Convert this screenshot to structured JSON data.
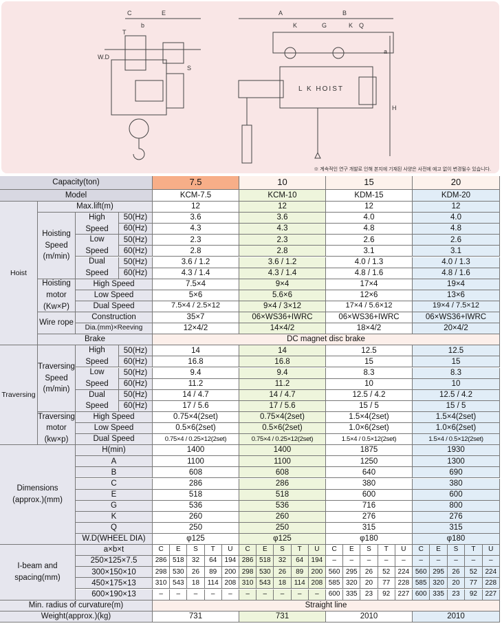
{
  "header": {
    "drawing_labels": [
      "C",
      "E",
      "T",
      "b",
      "W.D",
      "S",
      "A",
      "B",
      "K",
      "G",
      "K",
      "Q",
      "a",
      "H",
      "L K  HOIST"
    ],
    "note": "※ 계속적인 연구 개발로 인해 본지에 기재된 사양은 사전에 예고 없이 변경될수 있습니다."
  },
  "table": {
    "label_cells": [
      "Capacity(ton)",
      "Model",
      "Hoist",
      "Max.lift(m)",
      "Hoisting\nSpeed\n(m/min)",
      "High\nSpeed",
      "50(Hz)",
      "60(Hz)",
      "Low\nSpeed",
      "50(Hz)",
      "60(Hz)",
      "Dual\nSpeed",
      "50(Hz)",
      "60(Hz)",
      "Hoisting\nmotor\n(Kw×P)",
      "High Speed",
      "Low Speed",
      "Dual Speed",
      "Wire rope",
      "Construction",
      "Dia.(mm)×Reeving",
      "Brake",
      "Traversing",
      "Traversing\nSpeed\n(m/min)",
      "High\nSpeed",
      "50(Hz)",
      "60(Hz)",
      "Low\nSpeed",
      "50(Hz)",
      "60(Hz)",
      "Dual\nSpeed",
      "50(Hz)",
      "60(Hz)",
      "Traversing\nmotor\n(kw×p)",
      "High Speed",
      "Low Speed",
      "Dual Speed",
      "Dimensions\n(approx.)(mm)",
      "H(min)",
      "A",
      "B",
      "C",
      "E",
      "G",
      "K",
      "Q",
      "W.D(WHEEL DIA)",
      "I-beam and\nspacing(mm)",
      "a×b×t",
      "250×125×7.5",
      "300×150×10",
      "450×175×13",
      "600×190×13",
      "Min. radius of curvature(m)",
      "Weight(approx.)(kg)"
    ],
    "value_rows": [
      [
        "7.5",
        "10",
        "15",
        "20"
      ],
      [
        "KCM-7.5",
        "KCM-10",
        "KDM-15",
        "KDM-20"
      ],
      [
        "12",
        "12",
        "12",
        "12"
      ],
      [
        "3.6",
        "3.6",
        "4.0",
        "4.0"
      ],
      [
        "4.3",
        "4.3",
        "4.8",
        "4.8"
      ],
      [
        "2.3",
        "2.3",
        "2.6",
        "2.6"
      ],
      [
        "2.8",
        "2.8",
        "3.1",
        "3.1"
      ],
      [
        "3.6 / 1.2",
        "3.6 / 1.2",
        "4.0 / 1.3",
        "4.0 / 1.3"
      ],
      [
        "4.3 / 1.4",
        "4.3 / 1.4",
        "4.8 / 1.6",
        "4.8 / 1.6"
      ],
      [
        "7.5×4",
        "9×4",
        "17×4",
        "19×4"
      ],
      [
        "5×6",
        "5.6×6",
        "12×6",
        "13×6"
      ],
      [
        "7.5×4 / 2.5×12",
        "9×4 / 3×12",
        "17×4 / 5.6×12",
        "19×4 / 7.5×12"
      ],
      [
        "35×7",
        "06×WS36+IWRC",
        "06×WS36+IWRC",
        "06×WS36+IWRC"
      ],
      [
        "12×4/2",
        "14×4/2",
        "18×4/2",
        "20×4/2"
      ],
      [
        "DC magnet disc brake"
      ],
      [
        "14",
        "14",
        "12.5",
        "12.5"
      ],
      [
        "16.8",
        "16.8",
        "15",
        "15"
      ],
      [
        "9.4",
        "9.4",
        "8.3",
        "8.3"
      ],
      [
        "11.2",
        "11.2",
        "10",
        "10"
      ],
      [
        "14 / 4.7",
        "14 / 4.7",
        "12.5 / 4.2",
        "12.5 / 4.2"
      ],
      [
        "17 / 5.6",
        "17 / 5.6",
        "15 / 5",
        "15 / 5"
      ],
      [
        "0.75×4(2set)",
        "0.75×4(2set)",
        "1.5×4(2set)",
        "1.5×4(2set)"
      ],
      [
        "0.5×6(2set)",
        "0.5×6(2set)",
        "1.0×6(2set)",
        "1.0×6(2set)"
      ],
      [
        "0.75×4 / 0.25×12(2set)",
        "0.75×4 / 0.25×12(2set)",
        "1.5×4 / 0.5×12(2set)",
        "1.5×4 / 0.5×12(2set)"
      ],
      [
        "1400",
        "1400",
        "1875",
        "1930"
      ],
      [
        "1100",
        "1100",
        "1250",
        "1300"
      ],
      [
        "608",
        "608",
        "640",
        "690"
      ],
      [
        "286",
        "286",
        "380",
        "380"
      ],
      [
        "518",
        "518",
        "600",
        "600"
      ],
      [
        "536",
        "536",
        "716",
        "800"
      ],
      [
        "260",
        "260",
        "276",
        "276"
      ],
      [
        "250",
        "250",
        "315",
        "315"
      ],
      [
        "φ125",
        "φ125",
        "φ180",
        "φ180"
      ],
      [
        "C",
        "E",
        "S",
        "T",
        "U",
        "C",
        "E",
        "S",
        "T",
        "U",
        "C",
        "E",
        "S",
        "T",
        "U",
        "C",
        "E",
        "S",
        "T",
        "U"
      ],
      [
        "286",
        "518",
        "32",
        "64",
        "194",
        "286",
        "518",
        "32",
        "64",
        "194",
        "–",
        "–",
        "–",
        "–",
        "–",
        "–",
        "–",
        "–",
        "–",
        "–"
      ],
      [
        "298",
        "530",
        "26",
        "89",
        "200",
        "298",
        "530",
        "26",
        "89",
        "200",
        "560",
        "295",
        "26",
        "52",
        "224",
        "560",
        "295",
        "26",
        "52",
        "224"
      ],
      [
        "310",
        "543",
        "18",
        "114",
        "208",
        "310",
        "543",
        "18",
        "114",
        "208",
        "585",
        "320",
        "20",
        "77",
        "228",
        "585",
        "320",
        "20",
        "77",
        "228"
      ],
      [
        "–",
        "–",
        "–",
        "–",
        "–",
        "–",
        "–",
        "–",
        "–",
        "–",
        "600",
        "335",
        "23",
        "92",
        "227",
        "600",
        "335",
        "23",
        "92",
        "227"
      ],
      [
        "Straight line"
      ],
      [
        "731",
        "731",
        "2010",
        "2010"
      ]
    ]
  }
}
